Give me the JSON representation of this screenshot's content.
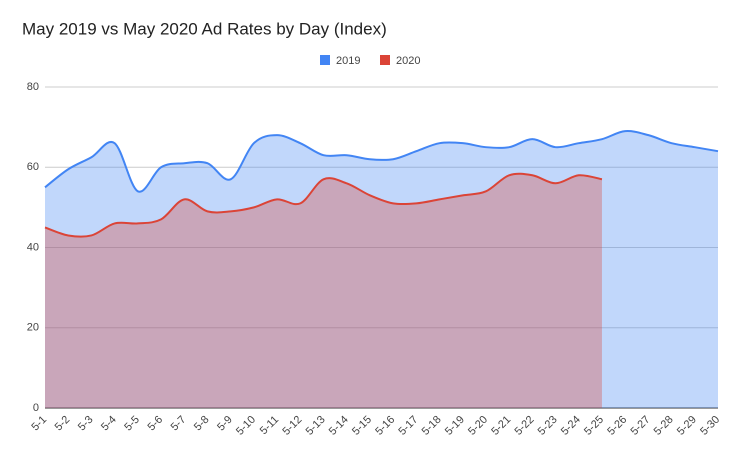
{
  "chart_data": {
    "type": "area",
    "title": "May 2019 vs May 2020 Ad Rates by Day (Index)",
    "categories": [
      "5-1",
      "5-2",
      "5-3",
      "5-4",
      "5-5",
      "5-6",
      "5-7",
      "5-8",
      "5-9",
      "5-10",
      "5-11",
      "5-12",
      "5-13",
      "5-14",
      "5-15",
      "5-16",
      "5-17",
      "5-18",
      "5-19",
      "5-20",
      "5-21",
      "5-22",
      "5-23",
      "5-24",
      "5-25",
      "5-26",
      "5-27",
      "5-28",
      "5-29",
      "5-30"
    ],
    "series": [
      {
        "name": "2019",
        "color": "#4285f4",
        "values": [
          55,
          59.5,
          62.5,
          66,
          54,
          60,
          61,
          61,
          57,
          66,
          68,
          66,
          63,
          63,
          62,
          62,
          64,
          66,
          66,
          65,
          65,
          67,
          65,
          66,
          67,
          69,
          68,
          66,
          65,
          64
        ]
      },
      {
        "name": "2020",
        "color": "#db4437",
        "values": [
          45,
          43,
          43,
          46,
          46,
          47,
          52,
          49,
          49,
          50,
          52,
          51,
          57,
          56,
          53,
          51,
          51,
          52,
          53,
          54,
          58,
          58,
          56,
          58,
          57,
          null,
          null,
          null,
          null,
          null
        ]
      }
    ],
    "ylim": [
      0,
      80
    ],
    "yticks": [
      0,
      20,
      40,
      60,
      80
    ],
    "grid": true,
    "legend": "top",
    "smooth": true
  }
}
